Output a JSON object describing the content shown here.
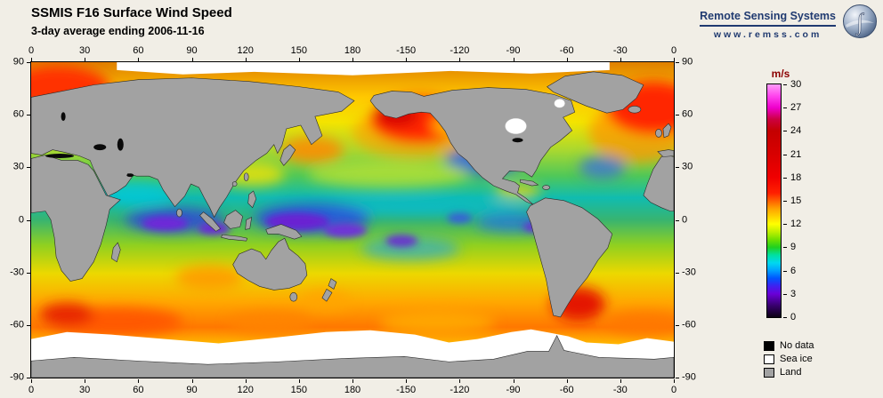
{
  "header": {
    "title": "SSMIS F16 Surface Wind Speed",
    "subtitle": "3-day average ending 2006-11-16",
    "brand": "Remote Sensing Systems",
    "url": "www.remss.com",
    "brand_color": "#203a70"
  },
  "axes": {
    "lon_ticks": [
      "0",
      "30",
      "60",
      "90",
      "120",
      "150",
      "180",
      "-150",
      "-120",
      "-90",
      "-60",
      "-30",
      "0"
    ],
    "lat_ticks": [
      "90",
      "60",
      "30",
      "0",
      "-30",
      "-60",
      "-90"
    ]
  },
  "colorbar": {
    "unit": "m/s",
    "unit_color": "#8b0000",
    "tick_labels": [
      "30",
      "27",
      "24",
      "21",
      "18",
      "15",
      "12",
      "9",
      "6",
      "3",
      "0"
    ],
    "min": 0,
    "max": 30
  },
  "legend": {
    "items": [
      {
        "label": "No data",
        "color": "#000000"
      },
      {
        "label": "Sea ice",
        "color": "#ffffff"
      },
      {
        "label": "Land",
        "color": "#a2a2a2"
      }
    ]
  },
  "chart_data": {
    "type": "heatmap",
    "title": "SSMIS F16 Surface Wind Speed",
    "subtitle": "3-day average ending 2006-11-16",
    "x_axis_ticks_deg": [
      0,
      30,
      60,
      90,
      120,
      150,
      180,
      -150,
      -120,
      -90,
      -60,
      -30,
      0
    ],
    "y_axis_ticks_deg": [
      90,
      60,
      30,
      0,
      -30,
      -60,
      -90
    ],
    "colorbar": {
      "unit": "m/s",
      "min": 0,
      "max": 30,
      "tick_values": [
        30,
        27,
        24,
        21,
        18,
        15,
        12,
        9,
        6,
        3,
        0
      ]
    },
    "classes": [
      "No data",
      "Sea ice",
      "Land"
    ],
    "legend_position": "right"
  }
}
